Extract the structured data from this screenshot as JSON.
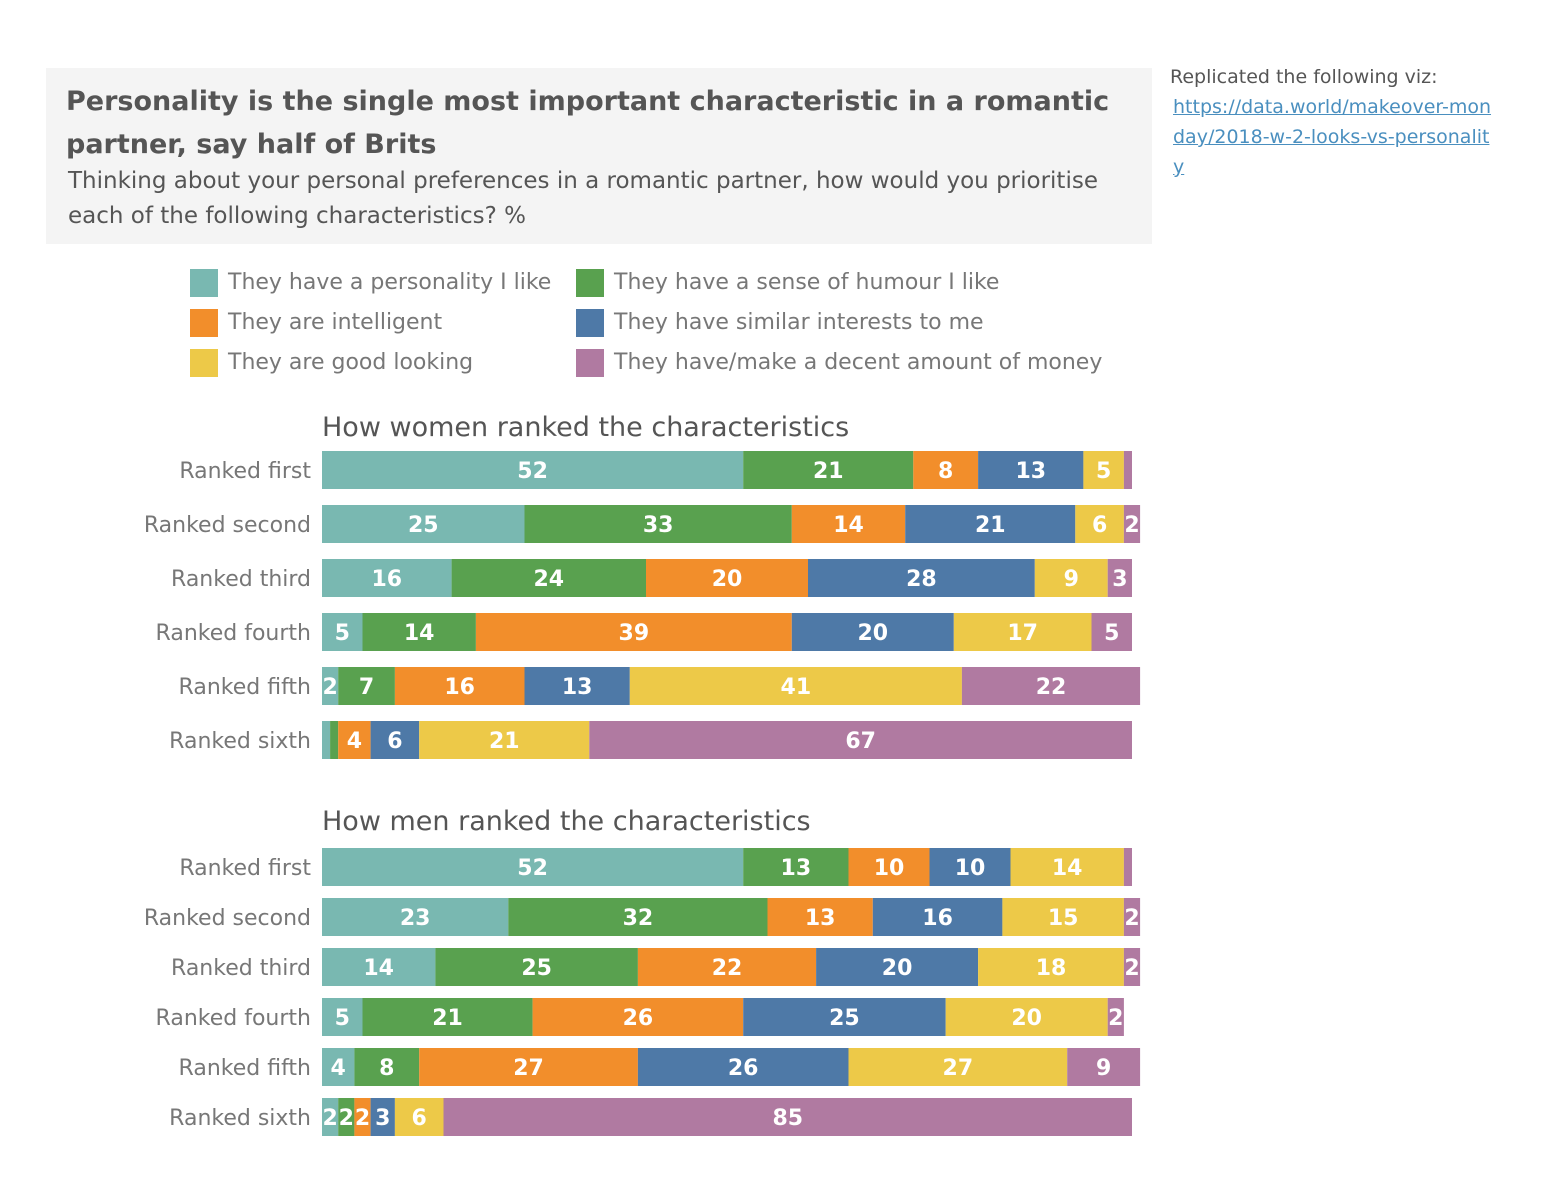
{
  "header": {
    "title": "Personality is the single most important characteristic in a romantic partner, say half of Brits",
    "subtitle": "Thinking about your personal preferences in a romantic partner, how would you prioritise each of the following characteristics? %"
  },
  "credit": {
    "label": "Replicated the following viz:",
    "link_text": "https://data.world/makeover-monday/2018-w-2-looks-vs-personality"
  },
  "colors": {
    "personality": "#79b8b1",
    "humour": "#59a14f",
    "intelligent": "#f28e2b",
    "interests": "#4e79a7",
    "looking": "#edc948",
    "money": "#b07aa1"
  },
  "chart_data": [
    {
      "type": "bar",
      "orientation": "horizontal",
      "stacked": true,
      "title": "How women ranked the characteristics",
      "categories": [
        "Ranked first",
        "Ranked second",
        "Ranked third",
        "Ranked fourth",
        "Ranked fifth",
        "Ranked sixth"
      ],
      "series": [
        {
          "name": "They have a personality I like",
          "color": "#79b8b1",
          "values": [
            52,
            25,
            16,
            5,
            2,
            1
          ]
        },
        {
          "name": "They have a sense of humour I like",
          "color": "#59a14f",
          "values": [
            21,
            33,
            24,
            14,
            7,
            1
          ]
        },
        {
          "name": "They are intelligent",
          "color": "#f28e2b",
          "values": [
            8,
            14,
            20,
            39,
            16,
            4
          ]
        },
        {
          "name": "They have similar interests to me",
          "color": "#4e79a7",
          "values": [
            13,
            21,
            28,
            20,
            13,
            6
          ]
        },
        {
          "name": "They are good looking",
          "color": "#edc948",
          "values": [
            5,
            6,
            9,
            17,
            41,
            21
          ]
        },
        {
          "name": "They have/make a decent amount of money",
          "color": "#b07aa1",
          "values": [
            1,
            2,
            3,
            5,
            22,
            67
          ]
        }
      ]
    },
    {
      "type": "bar",
      "orientation": "horizontal",
      "stacked": true,
      "title": "How men ranked the characteristics",
      "categories": [
        "Ranked first",
        "Ranked second",
        "Ranked third",
        "Ranked fourth",
        "Ranked fifth",
        "Ranked sixth"
      ],
      "series": [
        {
          "name": "They have a personality I like",
          "color": "#79b8b1",
          "values": [
            52,
            23,
            14,
            5,
            4,
            2
          ]
        },
        {
          "name": "They have a sense of humour I like",
          "color": "#59a14f",
          "values": [
            13,
            32,
            25,
            21,
            8,
            2
          ]
        },
        {
          "name": "They are intelligent",
          "color": "#f28e2b",
          "values": [
            10,
            13,
            22,
            26,
            27,
            2
          ]
        },
        {
          "name": "They have similar interests to me",
          "color": "#4e79a7",
          "values": [
            10,
            16,
            20,
            25,
            26,
            3
          ]
        },
        {
          "name": "They are good looking",
          "color": "#edc948",
          "values": [
            14,
            15,
            18,
            20,
            27,
            6
          ]
        },
        {
          "name": "They have/make a decent amount of money",
          "color": "#b07aa1",
          "values": [
            1,
            2,
            2,
            2,
            9,
            85
          ]
        }
      ]
    }
  ]
}
